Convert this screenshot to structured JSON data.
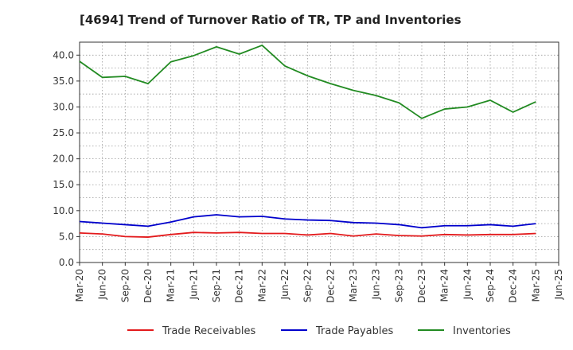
{
  "chart_data": {
    "type": "line",
    "title": "[4694]  Trend of Turnover Ratio of TR, TP and Inventories",
    "xlabel": "",
    "ylabel": "",
    "ylim": [
      0,
      42.5
    ],
    "yticks": [
      "0.0",
      "5.0",
      "10.0",
      "15.0",
      "20.0",
      "25.0",
      "30.0",
      "35.0",
      "40.0"
    ],
    "ytick_values": [
      0,
      5,
      10,
      15,
      20,
      25,
      30,
      35,
      40
    ],
    "x": [
      "Mar-20",
      "Jun-20",
      "Sep-20",
      "Dec-20",
      "Mar-21",
      "Jun-21",
      "Sep-21",
      "Dec-21",
      "Mar-22",
      "Jun-22",
      "Sep-22",
      "Dec-22",
      "Mar-23",
      "Jun-23",
      "Sep-23",
      "Dec-23",
      "Mar-24",
      "Jun-24",
      "Sep-24",
      "Dec-24",
      "Mar-25",
      "Jun-25"
    ],
    "grid": true,
    "legend_position": "bottom",
    "series": [
      {
        "name": "Trade Receivables",
        "color": "#e31a1c",
        "values": [
          5.7,
          5.5,
          5.0,
          4.9,
          5.4,
          5.8,
          5.7,
          5.8,
          5.6,
          5.6,
          5.3,
          5.6,
          5.1,
          5.5,
          5.2,
          5.1,
          5.4,
          5.3,
          5.4,
          5.4,
          5.6,
          null
        ]
      },
      {
        "name": "Trade Payables",
        "color": "#0000cc",
        "values": [
          7.9,
          7.6,
          7.3,
          7.0,
          7.8,
          8.8,
          9.2,
          8.8,
          8.9,
          8.4,
          8.2,
          8.1,
          7.7,
          7.6,
          7.3,
          6.7,
          7.1,
          7.1,
          7.3,
          7.0,
          7.5,
          null
        ]
      },
      {
        "name": "Inventories",
        "color": "#228b22",
        "values": [
          38.8,
          35.7,
          35.9,
          34.5,
          38.7,
          39.9,
          41.6,
          40.2,
          41.9,
          37.9,
          36.0,
          34.5,
          33.2,
          32.2,
          30.8,
          27.8,
          29.6,
          30.0,
          31.3,
          29.0,
          31.0,
          null
        ]
      }
    ]
  }
}
